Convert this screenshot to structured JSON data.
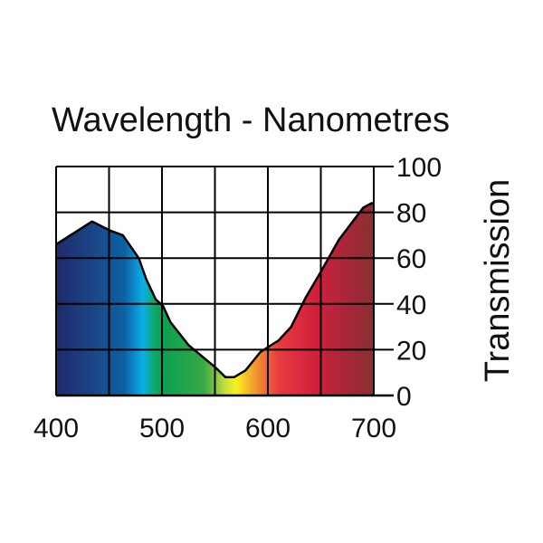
{
  "chart_data": {
    "type": "area",
    "title": "Wavelength - Nanometres",
    "xlabel": "",
    "ylabel": "Transmission",
    "xlim": [
      400,
      700
    ],
    "ylim": [
      0,
      100
    ],
    "xticks": [
      "400",
      "500",
      "600",
      "700"
    ],
    "yticks": [
      "0",
      "20",
      "40",
      "60",
      "80",
      "100"
    ],
    "grid": true,
    "x": [
      400,
      434,
      451,
      463,
      478,
      485,
      494,
      501,
      508,
      525,
      551,
      560,
      568,
      579,
      593,
      610,
      622,
      636,
      650,
      667,
      690,
      698,
      700
    ],
    "y": [
      66,
      76,
      72,
      70,
      60,
      51,
      42,
      39,
      32,
      22,
      12,
      8,
      8,
      11,
      19,
      24,
      30,
      43,
      54,
      68,
      82,
      84,
      84
    ],
    "fill_colors": [
      {
        "nm": 400,
        "color": "#1f2a6b"
      },
      {
        "nm": 440,
        "color": "#1a4a8a"
      },
      {
        "nm": 465,
        "color": "#0c62a5"
      },
      {
        "nm": 482,
        "color": "#0ab0e8"
      },
      {
        "nm": 492,
        "color": "#10a870"
      },
      {
        "nm": 500,
        "color": "#0aa050"
      },
      {
        "nm": 540,
        "color": "#38a848"
      },
      {
        "nm": 560,
        "color": "#c8e040"
      },
      {
        "nm": 570,
        "color": "#f8f020"
      },
      {
        "nm": 590,
        "color": "#f09030"
      },
      {
        "nm": 610,
        "color": "#e83a40"
      },
      {
        "nm": 645,
        "color": "#d0203c"
      },
      {
        "nm": 680,
        "color": "#a02838"
      },
      {
        "nm": 700,
        "color": "#8a3030"
      }
    ]
  }
}
